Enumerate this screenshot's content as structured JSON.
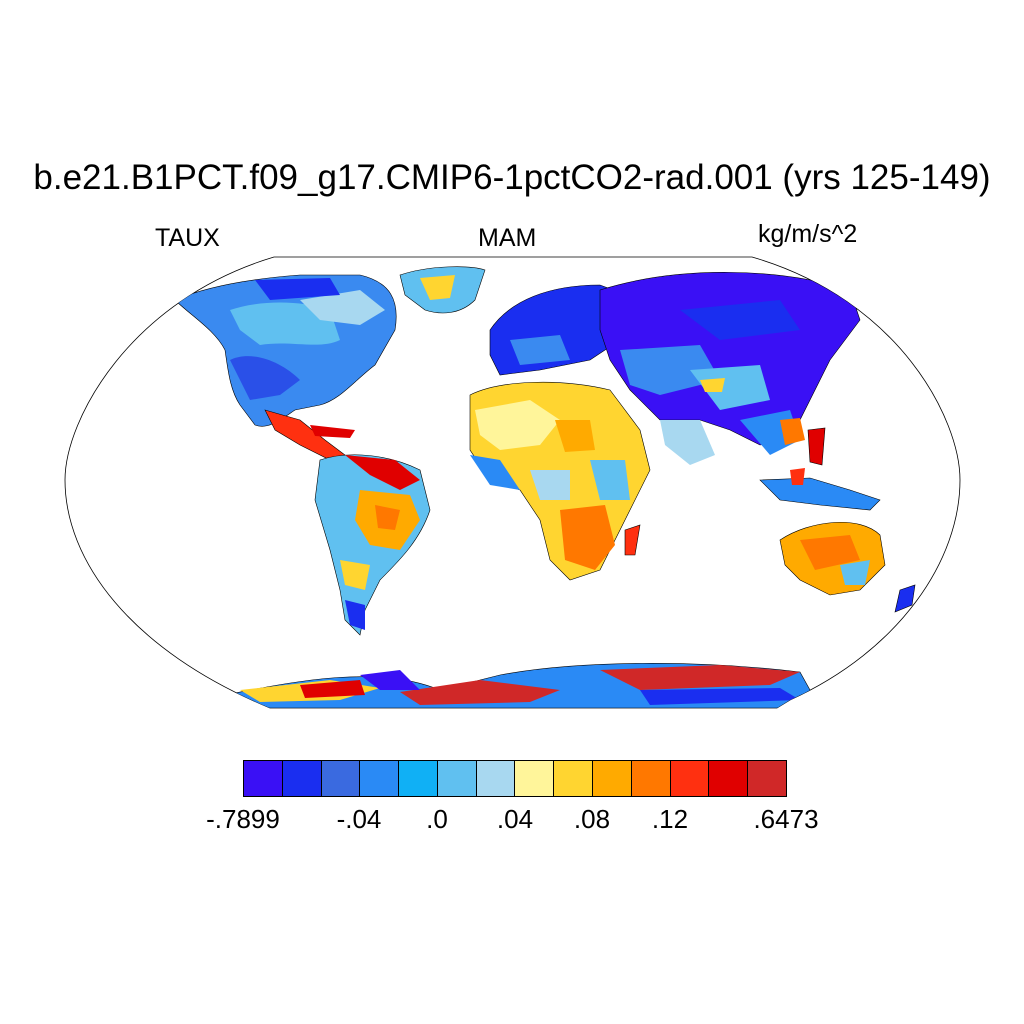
{
  "title": "b.e21.B1PCT.f09_g17.CMIP6-1pctCO2-rad.001 (yrs 125-149)",
  "variable": "TAUX",
  "season": "MAM",
  "units": "kg/m/s^2",
  "projection": "Robinson",
  "colorbar": {
    "colors": [
      "#3a10f5",
      "#1a2ef0",
      "#3a6ae0",
      "#2a8af5",
      "#10b0f5",
      "#60c0f0",
      "#a8d8f0",
      "#fff59a",
      "#ffd530",
      "#ffaa00",
      "#ff7800",
      "#ff3010",
      "#e00000",
      "#d02828"
    ],
    "labels": [
      ".7899 neg",
      "-.04",
      ".0",
      ".04",
      ".08",
      ".12",
      ".6473"
    ]
  },
  "colorbar_labels": [
    "-.7899",
    "-.04",
    ".0",
    ".04",
    ".08",
    ".12",
    ".6473"
  ]
}
